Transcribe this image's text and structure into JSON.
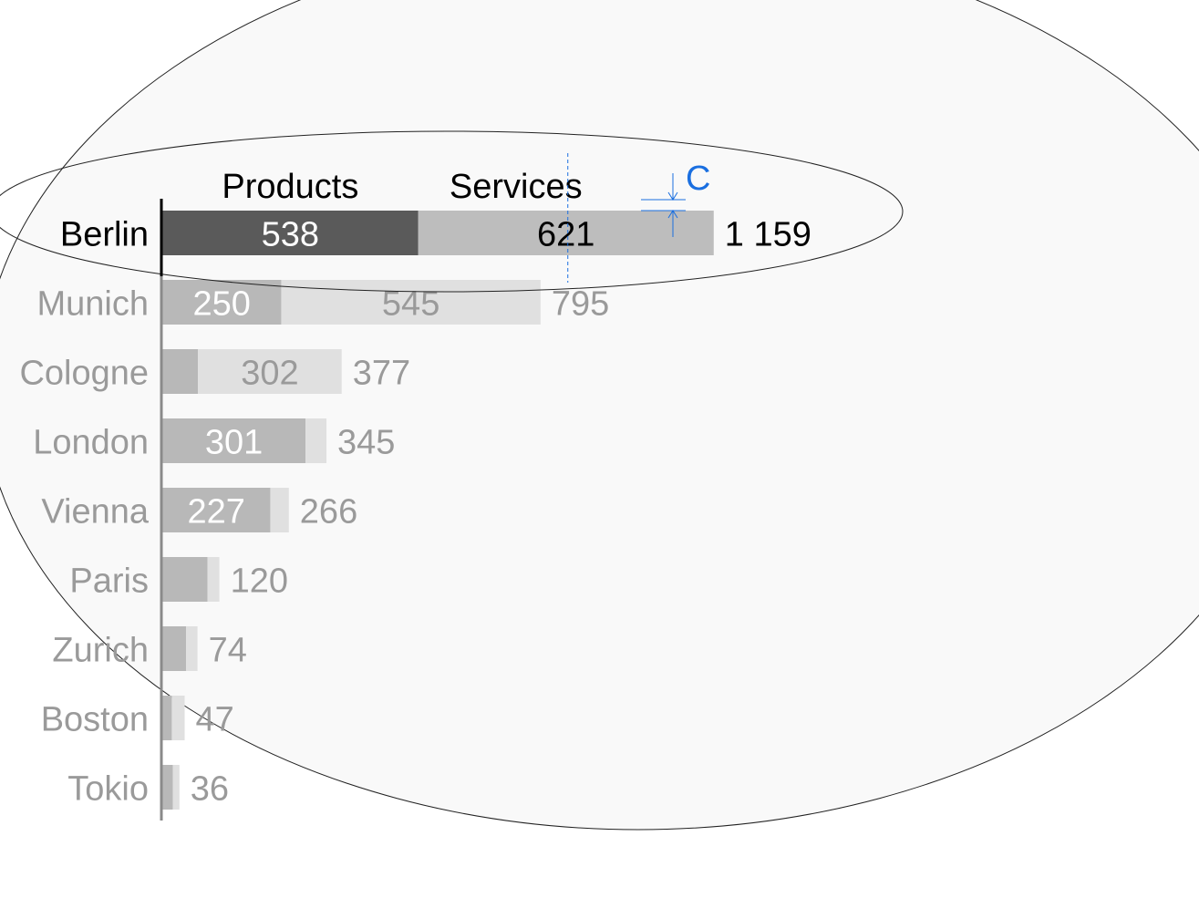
{
  "chart_data": {
    "type": "bar",
    "orientation": "horizontal",
    "stacked": true,
    "categories": [
      "Berlin",
      "Munich",
      "Cologne",
      "London",
      "Vienna",
      "Paris",
      "Zurich",
      "Boston",
      "Tokio"
    ],
    "series": [
      {
        "name": "Products",
        "values": [
          538,
          250,
          75,
          301,
          227,
          95,
          50,
          20,
          22
        ],
        "labels": [
          "538",
          "250",
          "",
          "301",
          "227",
          "",
          "",
          "",
          ""
        ]
      },
      {
        "name": "Services",
        "values": [
          621,
          545,
          302,
          44,
          39,
          25,
          24,
          27,
          14
        ],
        "labels": [
          "621",
          "545",
          "302",
          "",
          "",
          "",
          "",
          "",
          ""
        ]
      }
    ],
    "totals": [
      1159,
      795,
      377,
      345,
      266,
      120,
      74,
      47,
      36
    ],
    "total_labels": [
      "1 159",
      "795",
      "377",
      "345",
      "266",
      "120",
      "74",
      "47",
      "36"
    ],
    "highlighted_category": "Berlin",
    "annotation_marker": "C",
    "legend": "top, above first bar",
    "grid": false,
    "xlim": [
      0,
      1159
    ],
    "colors": {
      "highlight_products": "#5a5a5a",
      "highlight_services": "#bdbdbd",
      "products": "#b8b8b8",
      "services": "#e0e0e0",
      "label_dark": "#000000",
      "label_muted": "#9a9a9a",
      "label_on_dark": "#ffffff",
      "annotation": "#1a6fe0",
      "background_ellipse": "#f9f9f9"
    }
  }
}
